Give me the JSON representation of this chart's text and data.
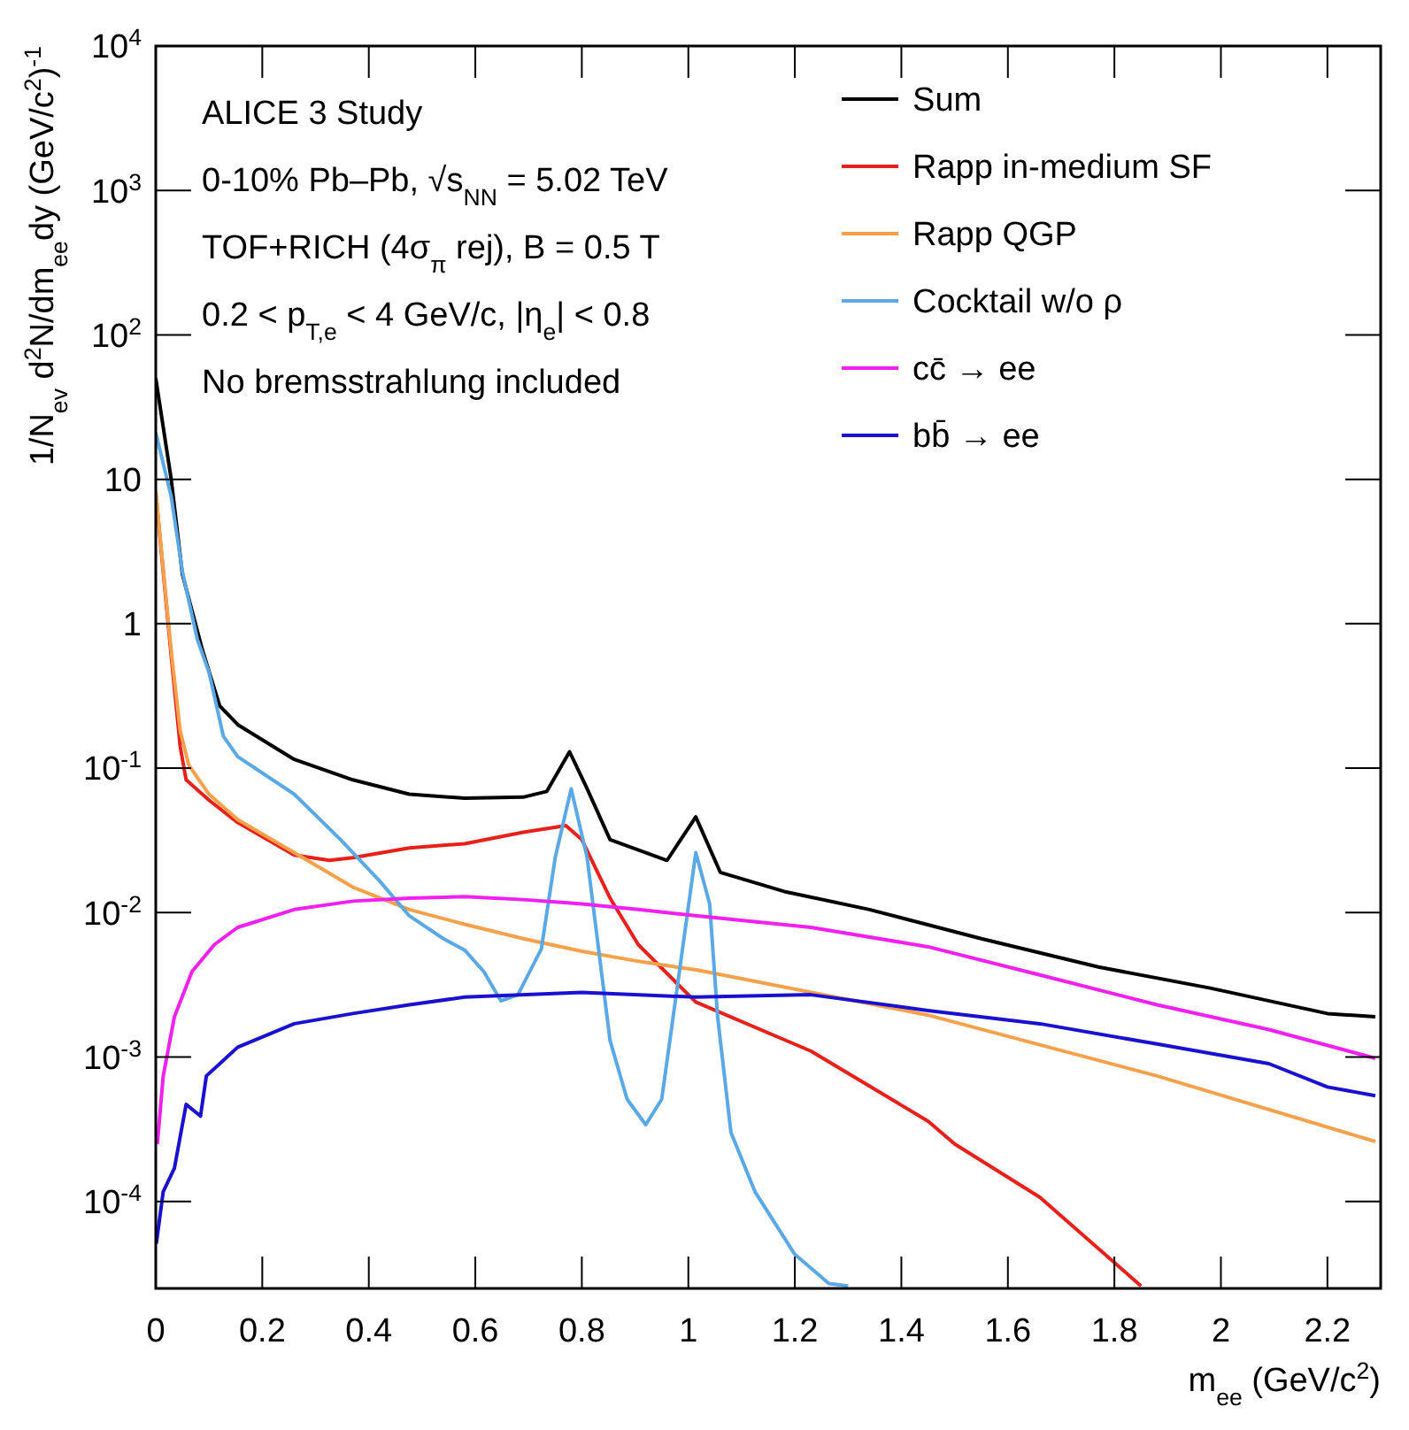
{
  "chart_data": {
    "type": "line",
    "xlabel": "m$_{ee}$ (GeV/c$^{2}$)",
    "ylabel": "1/N$_{ev}$ d$^{2}$N/dm$_{ee}$dy (GeV/c$^{2}$)$^{-1}$",
    "annotations": [
      "ALICE 3 Study",
      "0-10% Pb–Pb, √s$_{NN}$ = 5.02 TeV",
      "TOF+RICH (4σ$_{π}$ rej), B = 0.5 T",
      "0.2 < p$_{T,e}$ < 4 GeV/c, |η$_{e}$| < 0.8",
      "No bremsstrahlung included"
    ],
    "log": "y",
    "legend": "top right",
    "grid": false,
    "line_style": "solid",
    "marker": "none",
    "xlim": [
      0,
      2.3
    ],
    "ylim": [
      2.5e-05,
      10000
    ],
    "xticks": [
      0,
      0.2,
      0.4,
      0.6,
      0.8,
      1,
      1.2,
      1.4,
      1.6,
      1.8,
      2,
      2.2
    ],
    "yticks": [
      {
        "value": 0.0001,
        "label": "10$^{-4}$"
      },
      {
        "value": 0.001,
        "label": "10$^{-3}$"
      },
      {
        "value": 0.01,
        "label": "10$^{-2}$"
      },
      {
        "value": 0.1,
        "label": "10$^{-1}$"
      },
      1,
      10,
      {
        "value": 100,
        "label": "10$^{2}$"
      },
      {
        "value": 1000,
        "label": "10$^{3}$"
      },
      {
        "value": 10000,
        "label": "10$^{4}$"
      }
    ],
    "series": [
      {
        "name": "Sum",
        "color": "#000000",
        "x": [
          0,
          0.029,
          0.05,
          0.088,
          0.12,
          0.154,
          0.26,
          0.37,
          0.476,
          0.58,
          0.69,
          0.734,
          0.777,
          0.81,
          0.853,
          0.96,
          1.014,
          1.06,
          1.18,
          1.34,
          1.55,
          1.77,
          1.98,
          2.2,
          2.29
        ],
        "values": [
          50,
          10,
          2.2,
          0.65,
          0.27,
          0.2,
          0.115,
          0.083,
          0.066,
          0.062,
          0.063,
          0.069,
          0.13,
          0.072,
          0.032,
          0.023,
          0.046,
          0.019,
          0.014,
          0.0105,
          0.0066,
          0.0042,
          0.003,
          0.002,
          0.0019
        ]
      },
      {
        "name": "Rapp in-medium SF",
        "color": "#e8201a",
        "x": [
          0,
          0.013,
          0.029,
          0.046,
          0.057,
          0.1,
          0.154,
          0.26,
          0.326,
          0.37,
          0.476,
          0.58,
          0.69,
          0.77,
          0.8,
          0.853,
          0.906,
          1.014,
          1.23,
          1.45,
          1.5,
          1.66,
          1.85
        ],
        "values": [
          8,
          2.5,
          0.6,
          0.14,
          0.083,
          0.06,
          0.042,
          0.025,
          0.023,
          0.024,
          0.028,
          0.03,
          0.036,
          0.04,
          0.032,
          0.0126,
          0.006,
          0.0024,
          0.0011,
          0.00036,
          0.00025,
          0.000107,
          2.6e-05
        ]
      },
      {
        "name": "Rapp QGP",
        "color": "#f5a04a",
        "x": [
          0,
          0.013,
          0.029,
          0.046,
          0.062,
          0.1,
          0.154,
          0.26,
          0.37,
          0.476,
          0.58,
          0.69,
          0.8,
          0.906,
          1.017,
          1.45,
          1.88,
          2.29
        ],
        "values": [
          8.3,
          2.6,
          0.65,
          0.18,
          0.105,
          0.066,
          0.044,
          0.026,
          0.015,
          0.0105,
          0.0083,
          0.0066,
          0.0054,
          0.0046,
          0.004,
          0.00195,
          0.00074,
          0.00026
        ]
      },
      {
        "name": "Cocktail w/o ρ",
        "color": "#5aa9e6",
        "x": [
          0,
          0.029,
          0.05,
          0.078,
          0.1,
          0.127,
          0.154,
          0.26,
          0.347,
          0.42,
          0.476,
          0.54,
          0.58,
          0.616,
          0.648,
          0.68,
          0.724,
          0.75,
          0.78,
          0.81,
          0.853,
          0.885,
          0.92,
          0.95,
          0.98,
          1.014,
          1.04,
          1.055,
          1.08,
          1.125,
          1.2,
          1.264,
          1.3
        ],
        "values": [
          21,
          7.6,
          2.3,
          0.78,
          0.46,
          0.166,
          0.12,
          0.066,
          0.032,
          0.0166,
          0.0095,
          0.0066,
          0.0055,
          0.0039,
          0.00245,
          0.0027,
          0.0056,
          0.024,
          0.072,
          0.024,
          0.0013,
          0.00051,
          0.00034,
          0.00051,
          0.0032,
          0.026,
          0.0115,
          0.0019,
          0.0003,
          0.000117,
          4.3e-05,
          2.7e-05,
          2.6e-05
        ]
      },
      {
        "name": "cc̄ → ee",
        "color": "#f020f0",
        "x": [
          0.003,
          0.014,
          0.035,
          0.068,
          0.11,
          0.154,
          0.26,
          0.37,
          0.476,
          0.58,
          0.69,
          0.8,
          0.906,
          1.017,
          1.23,
          1.45,
          1.66,
          1.88,
          2.09,
          2.29
        ],
        "values": [
          0.00025,
          0.00074,
          0.0019,
          0.0039,
          0.006,
          0.0079,
          0.0105,
          0.012,
          0.0126,
          0.0129,
          0.0123,
          0.0115,
          0.0105,
          0.0095,
          0.0079,
          0.0058,
          0.0037,
          0.0023,
          0.00155,
          0.00098
        ]
      },
      {
        "name": "bb̄ → ee",
        "color": "#1a10d0",
        "x": [
          0.001,
          0.014,
          0.035,
          0.057,
          0.084,
          0.095,
          0.154,
          0.26,
          0.37,
          0.476,
          0.58,
          0.8,
          1.014,
          1.23,
          1.45,
          1.66,
          1.88,
          2.09,
          2.2,
          2.29
        ],
        "values": [
          5.1e-05,
          0.000117,
          0.00017,
          0.00047,
          0.00039,
          0.00074,
          0.00117,
          0.0017,
          0.002,
          0.0023,
          0.0026,
          0.0028,
          0.0026,
          0.0027,
          0.0021,
          0.0017,
          0.00123,
          0.0009,
          0.00062,
          0.00054
        ]
      }
    ]
  }
}
